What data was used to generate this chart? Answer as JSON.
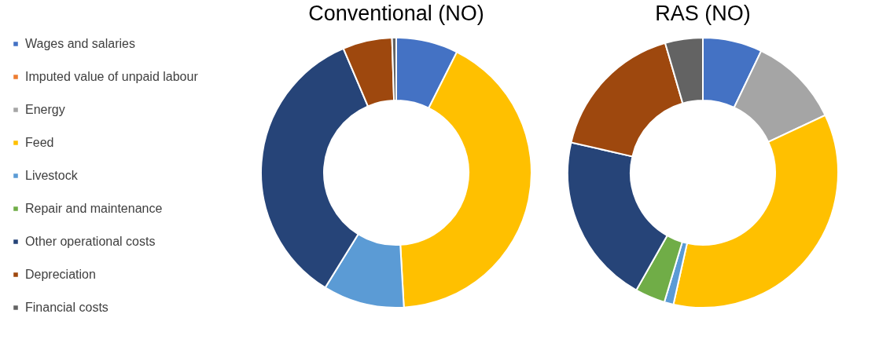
{
  "chart_data": {
    "type": "donut",
    "legend": "left",
    "categories": [
      "Wages and salaries",
      "Imputed value of unpaid labour",
      "Energy",
      "Feed",
      "Livestock",
      "Repair and maintenance",
      "Other operational costs",
      "Depreciation",
      "Financial costs"
    ],
    "colors": [
      "#4472c4",
      "#ed7d31",
      "#a5a5a5",
      "#ffc000",
      "#5b9bd5",
      "#70ad47",
      "#264478",
      "#9e480e",
      "#636363"
    ],
    "series": [
      {
        "name": "Conventional (NO)",
        "values": [
          7.4,
          0,
          0,
          41.7,
          9.7,
          0,
          34.8,
          5.9,
          0.5
        ]
      },
      {
        "name": "RAS (NO)",
        "values": [
          7.1,
          0,
          10.9,
          35.5,
          1.1,
          3.6,
          20.4,
          16.9,
          4.5
        ]
      }
    ]
  }
}
